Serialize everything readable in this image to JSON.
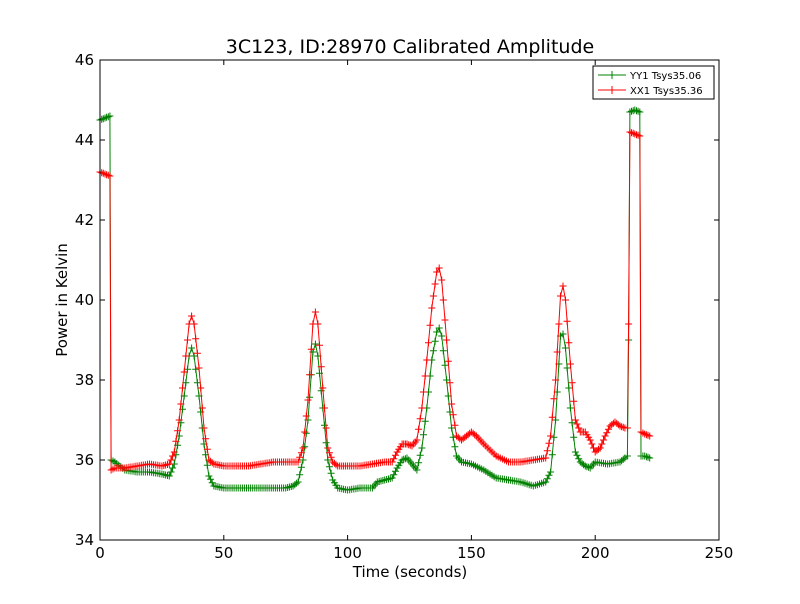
{
  "chart_data": {
    "type": "line",
    "title": "3C123, ID:28970 Calibrated Amplitude",
    "xlabel": "Time (seconds)",
    "ylabel": "Power in Kelvin",
    "xlim": [
      0,
      250
    ],
    "ylim": [
      34,
      46
    ],
    "xticks": [
      0,
      50,
      100,
      150,
      200,
      250
    ],
    "xtick_labels": [
      "0",
      "50",
      "100",
      "150",
      "200",
      "250"
    ],
    "yticks": [
      34,
      36,
      38,
      40,
      42,
      44,
      46
    ],
    "ytick_labels": [
      "34",
      "36",
      "38",
      "40",
      "42",
      "44",
      "46"
    ],
    "grid": false,
    "legend_position": "top-right",
    "marker": "+",
    "series": [
      {
        "name": "YY1 Tsys35.06",
        "color": "#008000",
        "points": [
          [
            0,
            44.5
          ],
          [
            2,
            44.55
          ],
          [
            4,
            44.6
          ],
          [
            4.5,
            36.0
          ],
          [
            6,
            35.95
          ],
          [
            10,
            35.75
          ],
          [
            15,
            35.7
          ],
          [
            20,
            35.7
          ],
          [
            25,
            35.65
          ],
          [
            28,
            35.6
          ],
          [
            30,
            35.9
          ],
          [
            32,
            36.6
          ],
          [
            34,
            37.6
          ],
          [
            36,
            38.6
          ],
          [
            37,
            38.8
          ],
          [
            38,
            38.6
          ],
          [
            40,
            37.6
          ],
          [
            42,
            36.4
          ],
          [
            44,
            35.6
          ],
          [
            46,
            35.35
          ],
          [
            50,
            35.3
          ],
          [
            55,
            35.3
          ],
          [
            60,
            35.3
          ],
          [
            65,
            35.3
          ],
          [
            70,
            35.3
          ],
          [
            75,
            35.3
          ],
          [
            78,
            35.35
          ],
          [
            80,
            35.45
          ],
          [
            82,
            36.0
          ],
          [
            84,
            37.0
          ],
          [
            86,
            38.7
          ],
          [
            87,
            38.9
          ],
          [
            88,
            38.6
          ],
          [
            90,
            37.3
          ],
          [
            92,
            36.0
          ],
          [
            94,
            35.5
          ],
          [
            96,
            35.3
          ],
          [
            100,
            35.25
          ],
          [
            105,
            35.3
          ],
          [
            110,
            35.3
          ],
          [
            112,
            35.45
          ],
          [
            115,
            35.5
          ],
          [
            118,
            35.55
          ],
          [
            120,
            35.8
          ],
          [
            122,
            36.0
          ],
          [
            124,
            36.05
          ],
          [
            126,
            35.9
          ],
          [
            128,
            35.75
          ],
          [
            130,
            36.3
          ],
          [
            132,
            37.3
          ],
          [
            134,
            38.5
          ],
          [
            136,
            39.2
          ],
          [
            137,
            39.3
          ],
          [
            138,
            39.1
          ],
          [
            140,
            38.0
          ],
          [
            142,
            36.8
          ],
          [
            144,
            36.1
          ],
          [
            146,
            35.95
          ],
          [
            150,
            35.9
          ],
          [
            155,
            35.75
          ],
          [
            160,
            35.55
          ],
          [
            165,
            35.5
          ],
          [
            170,
            35.45
          ],
          [
            175,
            35.35
          ],
          [
            180,
            35.45
          ],
          [
            182,
            35.7
          ],
          [
            184,
            37.0
          ],
          [
            186,
            39.1
          ],
          [
            187,
            39.15
          ],
          [
            188,
            38.8
          ],
          [
            190,
            37.3
          ],
          [
            192,
            36.2
          ],
          [
            194,
            35.95
          ],
          [
            196,
            35.85
          ],
          [
            198,
            35.8
          ],
          [
            200,
            35.95
          ],
          [
            205,
            35.9
          ],
          [
            210,
            35.95
          ],
          [
            212,
            36.05
          ],
          [
            213,
            36.1
          ],
          [
            213.5,
            39.0
          ],
          [
            214,
            44.7
          ],
          [
            216,
            44.75
          ],
          [
            218,
            44.7
          ],
          [
            218.5,
            36.1
          ],
          [
            220,
            36.1
          ],
          [
            222,
            36.05
          ]
        ]
      },
      {
        "name": "XX1 Tsys35.36",
        "color": "#ff0000",
        "points": [
          [
            0,
            43.2
          ],
          [
            2,
            43.15
          ],
          [
            4,
            43.1
          ],
          [
            4.5,
            35.75
          ],
          [
            6,
            35.8
          ],
          [
            10,
            35.8
          ],
          [
            15,
            35.85
          ],
          [
            20,
            35.9
          ],
          [
            25,
            35.85
          ],
          [
            28,
            35.9
          ],
          [
            30,
            36.2
          ],
          [
            32,
            37.0
          ],
          [
            34,
            38.2
          ],
          [
            36,
            39.4
          ],
          [
            37,
            39.6
          ],
          [
            38,
            39.4
          ],
          [
            40,
            38.3
          ],
          [
            42,
            36.8
          ],
          [
            44,
            36.0
          ],
          [
            46,
            35.9
          ],
          [
            50,
            35.85
          ],
          [
            55,
            35.85
          ],
          [
            60,
            35.85
          ],
          [
            65,
            35.9
          ],
          [
            70,
            35.95
          ],
          [
            75,
            35.95
          ],
          [
            80,
            35.95
          ],
          [
            82,
            36.3
          ],
          [
            84,
            37.5
          ],
          [
            86,
            39.4
          ],
          [
            87,
            39.7
          ],
          [
            88,
            39.4
          ],
          [
            90,
            37.8
          ],
          [
            92,
            36.3
          ],
          [
            94,
            35.95
          ],
          [
            96,
            35.85
          ],
          [
            100,
            35.85
          ],
          [
            105,
            35.85
          ],
          [
            110,
            35.9
          ],
          [
            115,
            35.95
          ],
          [
            118,
            35.95
          ],
          [
            120,
            36.2
          ],
          [
            122,
            36.4
          ],
          [
            124,
            36.4
          ],
          [
            126,
            36.35
          ],
          [
            128,
            36.5
          ],
          [
            130,
            37.3
          ],
          [
            132,
            38.5
          ],
          [
            134,
            39.8
          ],
          [
            136,
            40.7
          ],
          [
            137,
            40.8
          ],
          [
            138,
            40.5
          ],
          [
            140,
            39.0
          ],
          [
            142,
            37.4
          ],
          [
            144,
            36.6
          ],
          [
            146,
            36.5
          ],
          [
            148,
            36.6
          ],
          [
            150,
            36.7
          ],
          [
            152,
            36.6
          ],
          [
            155,
            36.4
          ],
          [
            160,
            36.1
          ],
          [
            165,
            35.95
          ],
          [
            170,
            35.95
          ],
          [
            175,
            36.0
          ],
          [
            180,
            36.05
          ],
          [
            182,
            36.6
          ],
          [
            184,
            38.0
          ],
          [
            186,
            40.1
          ],
          [
            187,
            40.35
          ],
          [
            188,
            40.0
          ],
          [
            190,
            38.4
          ],
          [
            192,
            37.0
          ],
          [
            194,
            36.7
          ],
          [
            196,
            36.7
          ],
          [
            198,
            36.5
          ],
          [
            200,
            36.2
          ],
          [
            202,
            36.3
          ],
          [
            204,
            36.6
          ],
          [
            206,
            36.85
          ],
          [
            208,
            36.95
          ],
          [
            210,
            36.85
          ],
          [
            212,
            36.8
          ],
          [
            213,
            36.8
          ],
          [
            213.5,
            39.4
          ],
          [
            214,
            44.2
          ],
          [
            216,
            44.15
          ],
          [
            218,
            44.1
          ],
          [
            218.5,
            36.7
          ],
          [
            220,
            36.65
          ],
          [
            222,
            36.6
          ]
        ]
      }
    ]
  }
}
